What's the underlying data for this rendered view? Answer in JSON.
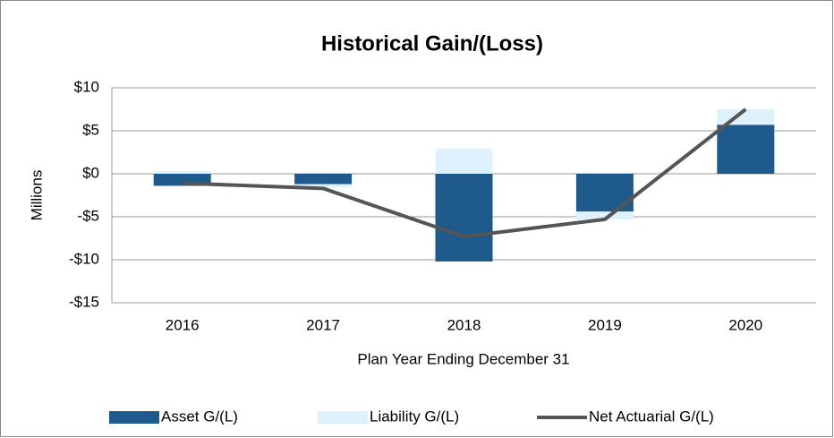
{
  "chart_data": {
    "type": "bar_line",
    "title": "Historical Gain/(Loss)",
    "y_label": "Millions",
    "x_label": "Plan Year Ending December 31",
    "categories": [
      "2016",
      "2017",
      "2018",
      "2019",
      "2020"
    ],
    "series": [
      {
        "name": "Asset G/(L)",
        "type": "bar",
        "color": "#1f5a8c",
        "values": [
          -1.4,
          -1.2,
          -10.2,
          -4.4,
          5.7
        ]
      },
      {
        "name": "Liability G/(L)",
        "type": "bar",
        "color": "#ddf2fc",
        "values": [
          0.3,
          -0.4,
          2.9,
          -0.9,
          1.8
        ]
      },
      {
        "name": "Net Actuarial G/(L)",
        "type": "line",
        "color": "#555555",
        "values": [
          -1.1,
          -1.7,
          -7.3,
          -5.3,
          7.5
        ]
      }
    ],
    "ylim": [
      -15,
      10
    ],
    "yticks": [
      {
        "value": -15,
        "label": "-$15"
      },
      {
        "value": -10,
        "label": "-$10"
      },
      {
        "value": -5,
        "label": "-$5"
      },
      {
        "value": 0,
        "label": "$0"
      },
      {
        "value": 5,
        "label": "$5"
      },
      {
        "value": 10,
        "label": "$10"
      }
    ],
    "grid": true,
    "legend": "bottom"
  }
}
